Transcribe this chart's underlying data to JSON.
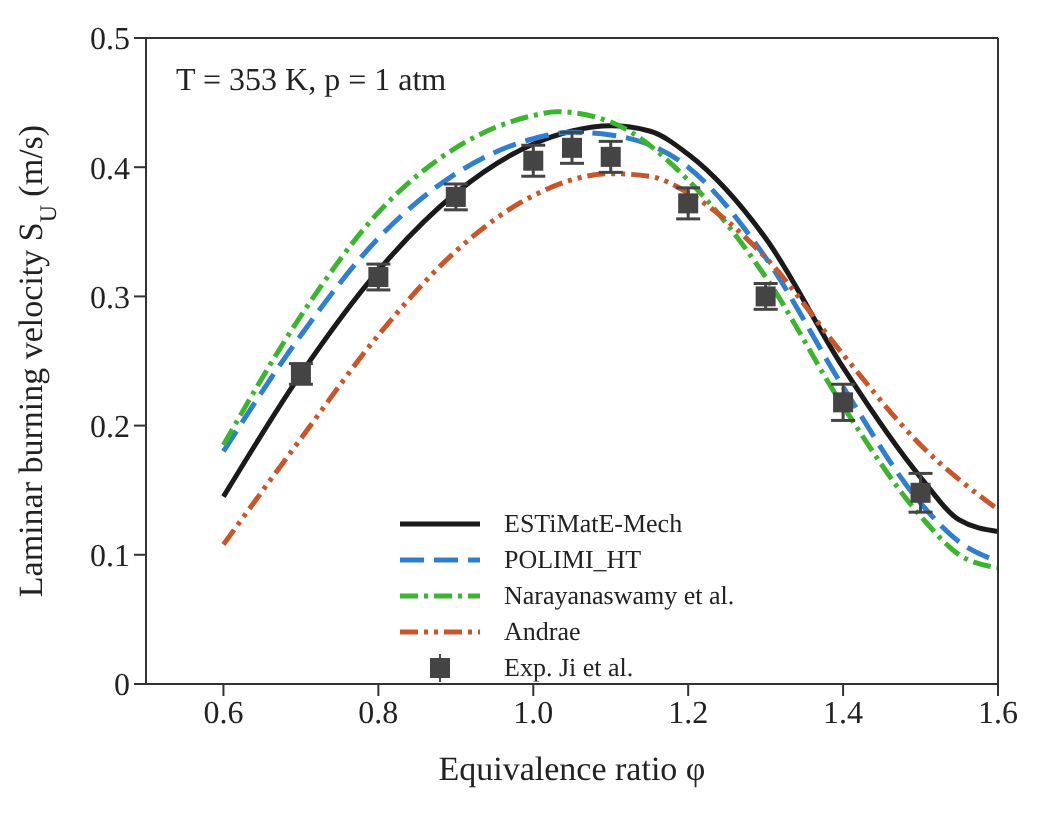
{
  "chart_data": {
    "type": "line",
    "xlabel": "Equivalence ratio φ",
    "ylabel": "Laminar burning velocity S$_{U}$ (m/s)",
    "annotations": [
      "T = 353 K, p = 1 atm"
    ],
    "xlim": [
      0.5,
      1.6
    ],
    "xticks": [
      {
        "value": 0.6,
        "label": "0.6"
      },
      {
        "value": 0.8,
        "label": "0.8"
      },
      {
        "value": 1.0,
        "label": "1.0"
      },
      {
        "value": 1.2,
        "label": "1.2"
      },
      {
        "value": 1.4,
        "label": "1.4"
      },
      {
        "value": 1.6,
        "label": "1.6"
      }
    ],
    "ylim": [
      0,
      0.5
    ],
    "yticks": [
      0,
      0.1,
      0.2,
      0.3,
      0.4,
      0.5
    ],
    "grid": false,
    "legend": "bottom",
    "marker": "none",
    "series": [
      {
        "name": "ESTiMatE-Mech",
        "color": "#1a1a1a",
        "line_style": "solid",
        "x": [
          0.6,
          0.7,
          0.8,
          0.9,
          1.0,
          1.05,
          1.1,
          1.15,
          1.2,
          1.3,
          1.4,
          1.5,
          1.55,
          1.6
        ],
        "values": [
          0.145,
          0.24,
          0.32,
          0.38,
          0.418,
          0.428,
          0.432,
          0.428,
          0.41,
          0.345,
          0.245,
          0.16,
          0.127,
          0.118
        ]
      },
      {
        "name": "POLIMI_HT",
        "color": "#2f7fd0",
        "line_style": "dashed",
        "x": [
          0.6,
          0.7,
          0.8,
          0.9,
          1.0,
          1.05,
          1.1,
          1.2,
          1.3,
          1.4,
          1.5,
          1.55,
          1.6
        ],
        "values": [
          0.18,
          0.27,
          0.345,
          0.395,
          0.422,
          0.427,
          0.425,
          0.4,
          0.33,
          0.23,
          0.14,
          0.11,
          0.095
        ]
      },
      {
        "name": "Narayanaswamy et al.",
        "color": "#3cb52e",
        "line_style": "dashdot",
        "x": [
          0.6,
          0.7,
          0.8,
          0.9,
          1.0,
          1.03,
          1.1,
          1.2,
          1.3,
          1.4,
          1.5,
          1.55,
          1.6
        ],
        "values": [
          0.185,
          0.285,
          0.365,
          0.415,
          0.44,
          0.443,
          0.435,
          0.39,
          0.315,
          0.215,
          0.13,
          0.1,
          0.09
        ]
      },
      {
        "name": "Andrae",
        "color": "#c8562a",
        "line_style": "dashdotdot",
        "x": [
          0.6,
          0.7,
          0.8,
          0.9,
          1.0,
          1.1,
          1.15,
          1.2,
          1.3,
          1.4,
          1.5,
          1.6
        ],
        "values": [
          0.108,
          0.19,
          0.27,
          0.335,
          0.378,
          0.395,
          0.393,
          0.38,
          0.33,
          0.255,
          0.185,
          0.135
        ]
      },
      {
        "name": "Exp. Ji et al.",
        "type": "scatter",
        "marker": "square",
        "color": "#444444",
        "x": [
          0.7,
          0.8,
          0.9,
          1.0,
          1.05,
          1.1,
          1.2,
          1.3,
          1.4,
          1.5
        ],
        "values": [
          0.24,
          0.315,
          0.377,
          0.405,
          0.415,
          0.408,
          0.372,
          0.3,
          0.218,
          0.148
        ],
        "errors": [
          0.008,
          0.01,
          0.01,
          0.012,
          0.012,
          0.012,
          0.012,
          0.01,
          0.014,
          0.015
        ]
      }
    ]
  }
}
